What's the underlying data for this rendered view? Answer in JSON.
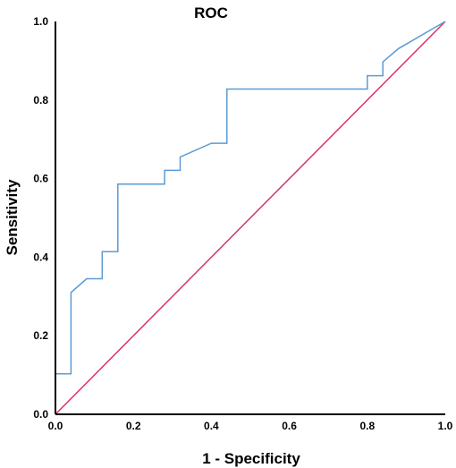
{
  "chart_data": {
    "type": "line",
    "title": "ROC",
    "xlabel": "1 - Specificity",
    "ylabel": "Sensitivity",
    "xlim": [
      0,
      1
    ],
    "ylim": [
      0,
      1
    ],
    "grid": false,
    "x_ticks": [
      "0.0",
      "0.2",
      "0.4",
      "0.6",
      "0.8",
      "1.0"
    ],
    "y_ticks": [
      "0.0",
      "0.2",
      "0.4",
      "0.6",
      "0.8",
      "1.0"
    ],
    "series": [
      {
        "color": "#5b9bd5",
        "x": [
          0.0,
          0.0,
          0.04,
          0.04,
          0.08,
          0.12,
          0.12,
          0.16,
          0.16,
          0.28,
          0.28,
          0.32,
          0.32,
          0.4,
          0.44,
          0.44,
          0.8,
          0.8,
          0.84,
          0.84,
          0.88,
          1.0
        ],
        "y": [
          0.0,
          0.103,
          0.103,
          0.31,
          0.345,
          0.345,
          0.414,
          0.414,
          0.586,
          0.586,
          0.621,
          0.621,
          0.655,
          0.69,
          0.69,
          0.828,
          0.828,
          0.862,
          0.862,
          0.897,
          0.931,
          1.0
        ]
      },
      {
        "color": "#d6336c",
        "x": [
          0,
          1
        ],
        "y": [
          0,
          1
        ]
      }
    ]
  }
}
